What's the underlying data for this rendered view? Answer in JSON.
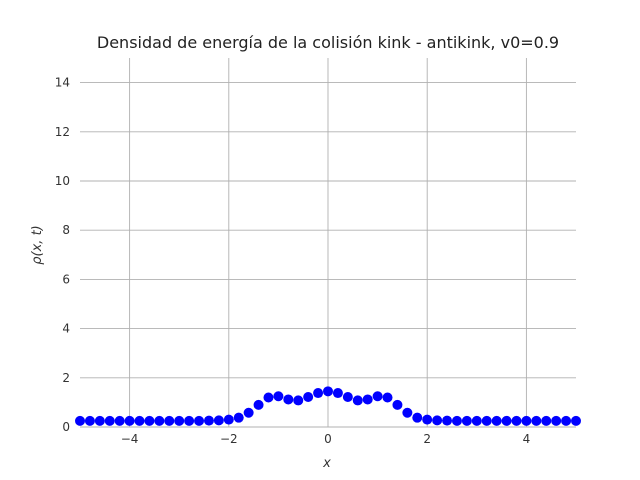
{
  "chart_data": {
    "type": "scatter",
    "title": "Densidad de energía de la colisión kink - antikink, v0=0.9",
    "xlabel": "x",
    "ylabel": "ρ(x, t)",
    "xlim": [
      -5,
      5
    ],
    "ylim": [
      0,
      15
    ],
    "xticks": [
      -4,
      -2,
      0,
      2,
      4
    ],
    "xtick_labels": [
      "−4",
      "−2",
      "0",
      "2",
      "4"
    ],
    "yticks": [
      0,
      2,
      4,
      6,
      8,
      10,
      12,
      14
    ],
    "ytick_labels": [
      "0",
      "2",
      "4",
      "6",
      "8",
      "10",
      "12",
      "14"
    ],
    "grid": true,
    "marker_color": "#0000ff",
    "series": [
      {
        "x": [
          -5.0,
          -4.8,
          -4.6,
          -4.4,
          -4.2,
          -4.0,
          -3.8,
          -3.6,
          -3.4,
          -3.2,
          -3.0,
          -2.8,
          -2.6,
          -2.4,
          -2.2,
          -2.0,
          -1.8,
          -1.6,
          -1.4,
          -1.2,
          -1.0,
          -0.8,
          -0.6,
          -0.4,
          -0.2,
          0.0,
          0.2,
          0.4,
          0.6,
          0.8,
          1.0,
          1.2,
          1.4,
          1.6,
          1.8,
          2.0,
          2.2,
          2.4,
          2.6,
          2.8,
          3.0,
          3.2,
          3.4,
          3.6,
          3.8,
          4.0,
          4.2,
          4.4,
          4.6,
          4.8,
          5.0
        ],
        "y": [
          0.25,
          0.25,
          0.25,
          0.25,
          0.25,
          0.25,
          0.25,
          0.25,
          0.25,
          0.25,
          0.25,
          0.25,
          0.25,
          0.26,
          0.27,
          0.3,
          0.38,
          0.58,
          0.9,
          1.2,
          1.25,
          1.12,
          1.08,
          1.22,
          1.38,
          1.45,
          1.38,
          1.22,
          1.08,
          1.12,
          1.25,
          1.2,
          0.9,
          0.58,
          0.38,
          0.3,
          0.27,
          0.26,
          0.25,
          0.25,
          0.25,
          0.25,
          0.25,
          0.25,
          0.25,
          0.25,
          0.25,
          0.25,
          0.25,
          0.25,
          0.25
        ]
      }
    ]
  }
}
